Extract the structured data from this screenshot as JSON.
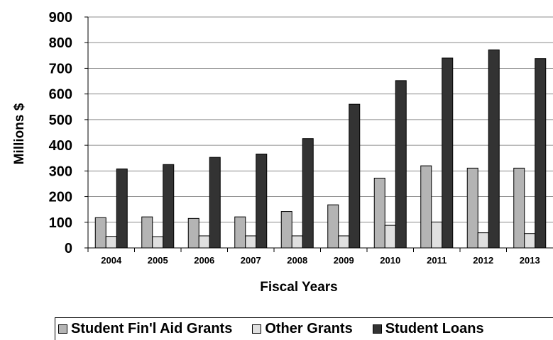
{
  "chart_data": {
    "type": "bar",
    "xlabel": "Fiscal Years",
    "ylabel": "Millions $",
    "ylim": [
      0,
      900
    ],
    "yticks": [
      0,
      100,
      200,
      300,
      400,
      500,
      600,
      700,
      800,
      900
    ],
    "grid": true,
    "legend_position": "bottom",
    "categories": [
      "2004",
      "2005",
      "2006",
      "2007",
      "2008",
      "2009",
      "2010",
      "2011",
      "2012",
      "2013"
    ],
    "series": [
      {
        "name": "Student Fin'l Aid Grants",
        "color": "#b4b4b4",
        "values": [
          118,
          121,
          115,
          121,
          142,
          168,
          272,
          320,
          311,
          311
        ]
      },
      {
        "name": "Other Grants",
        "color": "#e0e0e0",
        "values": [
          45,
          44,
          47,
          47,
          47,
          47,
          88,
          101,
          59,
          56
        ]
      },
      {
        "name": "Student Loans",
        "color": "#333333",
        "values": [
          308,
          325,
          353,
          366,
          426,
          560,
          652,
          740,
          772,
          738
        ]
      }
    ]
  }
}
